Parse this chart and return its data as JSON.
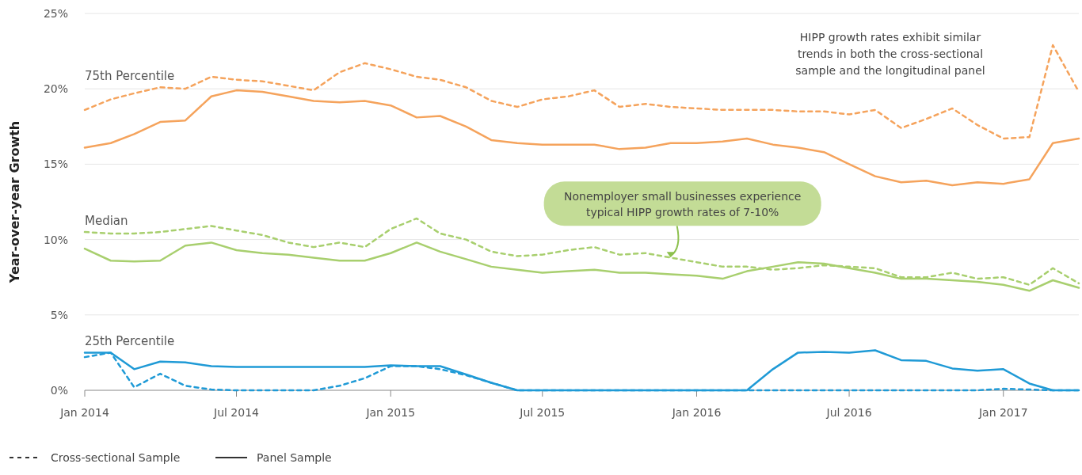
{
  "chart_data": {
    "type": "line",
    "ylabel": "Year-over-year Growth",
    "x": [
      "2014-01",
      "2014-02",
      "2014-03",
      "2014-04",
      "2014-05",
      "2014-06",
      "2014-07",
      "2014-08",
      "2014-09",
      "2014-10",
      "2014-11",
      "2014-12",
      "2015-01",
      "2015-02",
      "2015-03",
      "2015-04",
      "2015-05",
      "2015-06",
      "2015-07",
      "2015-08",
      "2015-09",
      "2015-10",
      "2015-11",
      "2015-12",
      "2016-01",
      "2016-02",
      "2016-03",
      "2016-04",
      "2016-05",
      "2016-06",
      "2016-07",
      "2016-08",
      "2016-09",
      "2016-10",
      "2016-11",
      "2016-12",
      "2017-01",
      "2017-02",
      "2017-03",
      "2017-04"
    ],
    "series": [
      {
        "color": "#f5a35c",
        "line_style": "dashed",
        "values": [
          18.6,
          19.3,
          19.7,
          20.1,
          20.0,
          20.8,
          20.6,
          20.5,
          20.2,
          19.9,
          21.1,
          21.7,
          21.3,
          20.8,
          20.6,
          20.1,
          19.2,
          18.8,
          19.3,
          19.5,
          19.9,
          18.8,
          19.0,
          18.8,
          18.7,
          18.6,
          18.6,
          18.6,
          18.5,
          18.5,
          18.3,
          18.6,
          17.4,
          18.0,
          18.7,
          17.6,
          16.7,
          16.8,
          22.9,
          19.8
        ]
      },
      {
        "name": "75th Percentile",
        "color": "#f5a35c",
        "line_style": "solid",
        "values": [
          16.1,
          16.4,
          17.0,
          17.8,
          17.9,
          19.5,
          19.9,
          19.8,
          19.5,
          19.2,
          19.1,
          19.2,
          18.9,
          18.1,
          18.2,
          17.5,
          16.6,
          16.4,
          16.3,
          16.3,
          16.3,
          16.0,
          16.1,
          16.4,
          16.4,
          16.5,
          16.7,
          16.3,
          16.1,
          15.8,
          15.0,
          14.2,
          13.8,
          13.9,
          13.6,
          13.8,
          13.7,
          14.0,
          16.4,
          16.7
        ]
      },
      {
        "color": "#a8cf6e",
        "line_style": "dashed",
        "values": [
          10.5,
          10.4,
          10.4,
          10.5,
          10.7,
          10.9,
          10.6,
          10.3,
          9.8,
          9.5,
          9.8,
          9.5,
          10.7,
          11.4,
          10.4,
          10.0,
          9.2,
          8.9,
          9.0,
          9.3,
          9.5,
          9.0,
          9.1,
          8.8,
          8.5,
          8.2,
          8.2,
          8.0,
          8.1,
          8.3,
          8.2,
          8.1,
          7.5,
          7.5,
          7.8,
          7.4,
          7.5,
          7.0,
          8.1,
          7.1
        ]
      },
      {
        "name": "Median",
        "color": "#a8cf6e",
        "line_style": "solid",
        "values": [
          9.4,
          8.6,
          8.55,
          8.6,
          9.6,
          9.8,
          9.3,
          9.1,
          9.0,
          8.8,
          8.6,
          8.6,
          9.1,
          9.8,
          9.2,
          8.7,
          8.2,
          8.0,
          7.8,
          7.9,
          8.0,
          7.8,
          7.8,
          7.7,
          7.6,
          7.4,
          7.9,
          8.2,
          8.5,
          8.4,
          8.1,
          7.8,
          7.4,
          7.4,
          7.3,
          7.2,
          7.0,
          6.6,
          7.3,
          6.8
        ]
      },
      {
        "color": "#1f9ad6",
        "line_style": "dashed",
        "values": [
          2.2,
          2.5,
          0.2,
          1.1,
          0.3,
          0.05,
          0,
          0,
          0,
          0,
          0.3,
          0.8,
          1.6,
          1.6,
          1.4,
          1.0,
          0.5,
          0,
          0,
          0,
          0,
          0,
          0,
          0,
          0,
          0,
          0,
          0,
          0,
          0,
          0,
          0,
          0,
          0,
          0,
          0,
          0.1,
          0.05,
          0,
          0
        ]
      },
      {
        "name": "25th Percentile",
        "color": "#1f9ad6",
        "line_style": "solid",
        "values": [
          2.5,
          2.5,
          1.4,
          1.9,
          1.85,
          1.6,
          1.55,
          1.55,
          1.55,
          1.55,
          1.55,
          1.55,
          1.65,
          1.6,
          1.6,
          1.05,
          0.5,
          0,
          0,
          0,
          0,
          0,
          0,
          0,
          0,
          0,
          0,
          1.4,
          2.5,
          2.55,
          2.5,
          2.65,
          2.0,
          1.95,
          1.45,
          1.3,
          1.4,
          0.45,
          0,
          0
        ]
      }
    ],
    "xlim": [
      "2014-01",
      "2017-04"
    ],
    "xticks": [
      {
        "value": "2014-01",
        "label": "Jan 2014"
      },
      {
        "value": "2014-07",
        "label": "Jul 2014"
      },
      {
        "value": "2015-01",
        "label": "Jan 2015"
      },
      {
        "value": "2015-07",
        "label": "Jul 2015"
      },
      {
        "value": "2016-01",
        "label": "Jan 2016"
      },
      {
        "value": "2016-07",
        "label": "Jul 2016"
      },
      {
        "value": "2017-01",
        "label": "Jan 2017"
      }
    ],
    "ylim": [
      0,
      25
    ],
    "yticks": [
      {
        "value": 0,
        "label": "0%"
      },
      {
        "value": 5,
        "label": "5%"
      },
      {
        "value": 10,
        "label": "10%"
      },
      {
        "value": 15,
        "label": "15%"
      },
      {
        "value": 20,
        "label": "20%"
      },
      {
        "value": 25,
        "label": "25%"
      }
    ],
    "grid": "y",
    "annotations": [
      "HIPP growth rates exhibit similar trends in both the cross-sectional sample and the longitudinal panel",
      {
        "text": "Nonemployer small businesses experience typical HIPP growth rates of 7-10%",
        "x": "2015-12",
        "y": 8.7
      },
      "Cross-sectional Sample",
      "Panel Sample"
    ]
  }
}
